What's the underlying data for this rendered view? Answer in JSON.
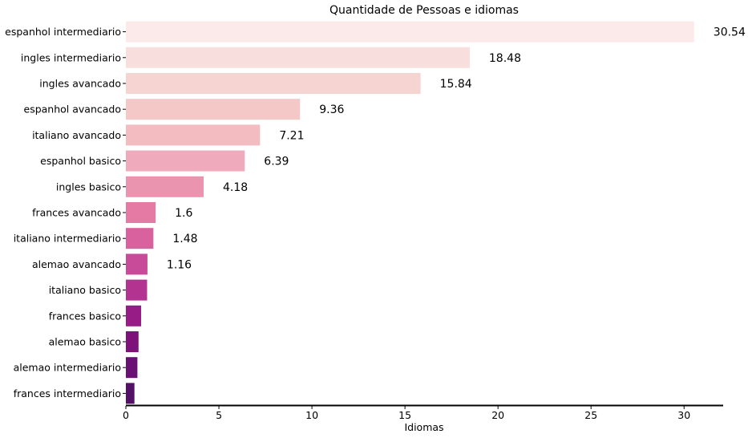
{
  "chart_data": {
    "type": "bar",
    "orientation": "horizontal",
    "title": "Quantidade de Pessoas e idiomas",
    "xlabel": "Idiomas",
    "ylabel": "",
    "xlim": [
      0,
      32.1
    ],
    "xticks": [
      0,
      5,
      10,
      15,
      20,
      25,
      30
    ],
    "grid": false,
    "categories": [
      "espanhol intermediario",
      "ingles intermediario",
      "ingles avancado",
      "espanhol avancado",
      "italiano avancado",
      "espanhol basico",
      "ingles basico",
      "frances avancado",
      "italiano intermediario",
      "alemao avancado",
      "italiano basico",
      "frances basico",
      "alemao basico",
      "alemao intermediario",
      "frances intermediario"
    ],
    "values": [
      30.54,
      18.48,
      15.84,
      9.36,
      7.21,
      6.39,
      4.18,
      1.6,
      1.48,
      1.16,
      1.14,
      0.82,
      0.68,
      0.62,
      0.46
    ],
    "data_labels": [
      "30.54",
      "18.48",
      "15.84",
      "9.36",
      "7.21",
      "6.39",
      "4.18",
      "1.6",
      "1.48",
      "1.16",
      "",
      "",
      "",
      "",
      ""
    ],
    "colors": [
      "#fbeae9",
      "#f8dfdd",
      "#f6d4d1",
      "#f4c8c7",
      "#f2bcc0",
      "#efaabb",
      "#ea94b0",
      "#e57aa5",
      "#d9619d",
      "#c84b99",
      "#b23490",
      "#981c85",
      "#7e117a",
      "#6a0f73",
      "#541067"
    ],
    "palette_name": "RdPu_r"
  }
}
